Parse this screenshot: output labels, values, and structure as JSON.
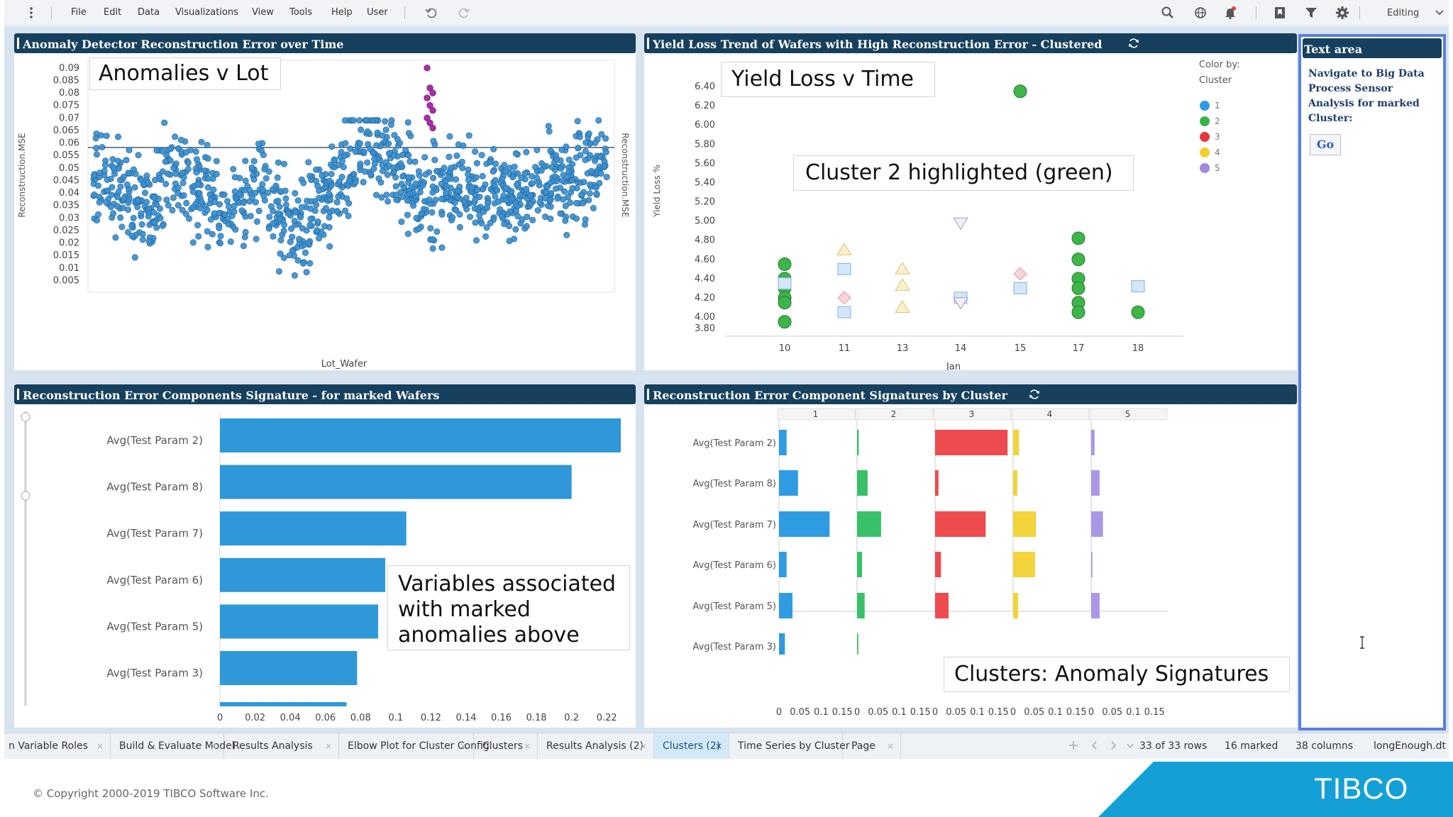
{
  "menubar": {
    "items": [
      "File",
      "Edit",
      "Data",
      "Visualizations",
      "View",
      "Tools",
      "Help",
      "User"
    ],
    "mode": "Editing"
  },
  "panels": {
    "anomaly": {
      "title": "Anomaly Detector Reconstruction Error over Time",
      "callout": "Anomalies v Lot",
      "xlabel": "Lot_Wafer",
      "ylabel": "Reconstruction.MSE",
      "ylabel_right": "Reconstruction.MSE",
      "yticks": [
        "0.09",
        "0.085",
        "0.08",
        "0.075",
        "0.07",
        "0.065",
        "0.06",
        "0.055",
        "0.05",
        "0.045",
        "0.04",
        "0.035",
        "0.03",
        "0.025",
        "0.02",
        "0.015",
        "0.01",
        "0.005"
      ]
    },
    "yield": {
      "title": "Yield Loss Trend of Wafers with High Reconstruction Error - Clustered",
      "callout1": "Yield Loss v Time",
      "callout2": "Cluster 2 highlighted (green)",
      "xlabel": "Jan",
      "ylabel": "Yield Loss %",
      "yticks": [
        "6.40",
        "6.20",
        "6.00",
        "5.80",
        "5.60",
        "5.40",
        "5.20",
        "5.00",
        "4.80",
        "4.60",
        "4.40",
        "4.20",
        "4.00",
        "3.80"
      ],
      "xticks": [
        "10",
        "11",
        "13",
        "14",
        "15",
        "17",
        "18"
      ],
      "legend_title": "Color by:",
      "legend_sub": "Cluster",
      "legend": [
        {
          "label": "1",
          "color": "#2f9be3"
        },
        {
          "label": "2",
          "color": "#38b34a"
        },
        {
          "label": "3",
          "color": "#e03a3e"
        },
        {
          "label": "4",
          "color": "#f1cf2c"
        },
        {
          "label": "5",
          "color": "#a18ae0"
        }
      ]
    },
    "signature": {
      "title": "Reconstruction Error Components Signature - for marked Wafers",
      "callout": "Variables associated with marked anomalies above",
      "categories": [
        "Avg(Test Param 2)",
        "Avg(Test Param 8)",
        "Avg(Test Param 7)",
        "Avg(Test Param 6)",
        "Avg(Test Param 5)",
        "Avg(Test Param 3)"
      ],
      "values": [
        0.228,
        0.2,
        0.106,
        0.094,
        0.09,
        0.078
      ],
      "xticks": [
        "0",
        "0.02",
        "0.04",
        "0.06",
        "0.08",
        "0.1",
        "0.12",
        "0.14",
        "0.16",
        "0.18",
        "0.2",
        "0.22"
      ]
    },
    "cluster": {
      "title": "Reconstruction Error Component Signatures by Cluster",
      "callout": "Clusters: Anomaly Signatures",
      "columns": [
        "1",
        "2",
        "3",
        "4",
        "5"
      ],
      "categories": [
        "Avg(Test Param 2)",
        "Avg(Test Param 8)",
        "Avg(Test Param 7)",
        "Avg(Test Param 6)",
        "Avg(Test Param 5)",
        "Avg(Test Param 3)"
      ],
      "xticks": [
        "0",
        "0.05",
        "0.1",
        "0.15"
      ]
    }
  },
  "chart_data": [
    {
      "type": "scatter",
      "title": "Anomaly Detector Reconstruction Error over Time",
      "xlabel": "Lot_Wafer",
      "ylabel": "Reconstruction.MSE",
      "ylim": [
        0.005,
        0.09
      ],
      "reference_line": 0.065,
      "series": [
        {
          "name": "wafers",
          "color": "#2f8fd0",
          "summary": "approx. 1000+ points between 0.005 and 0.07"
        },
        {
          "name": "marked",
          "color": "#a62fa6",
          "values": [
            0.09,
            0.082,
            0.08,
            0.078,
            0.075,
            0.073,
            0.07,
            0.068,
            0.066
          ]
        }
      ]
    },
    {
      "type": "scatter",
      "title": "Yield Loss Trend of Wafers with High Reconstruction Error - Clustered",
      "xlabel": "Jan",
      "ylabel": "Yield Loss %",
      "ylim": [
        3.8,
        6.4
      ],
      "x": [
        "10",
        "11",
        "13",
        "14",
        "15",
        "17",
        "18"
      ],
      "series": [
        {
          "name": "2",
          "points": [
            [
              10,
              4.55
            ],
            [
              10,
              4.4
            ],
            [
              10,
              4.3
            ],
            [
              10,
              4.2
            ],
            [
              10,
              4.15
            ],
            [
              10,
              3.95
            ],
            [
              15,
              6.35
            ],
            [
              17,
              4.82
            ],
            [
              17,
              4.6
            ],
            [
              17,
              4.4
            ],
            [
              17,
              4.3
            ],
            [
              17,
              4.15
            ],
            [
              17,
              4.05
            ],
            [
              18,
              4.05
            ]
          ]
        },
        {
          "name": "1",
          "points": [
            [
              10,
              4.35
            ],
            [
              11,
              4.5
            ],
            [
              11,
              4.05
            ],
            [
              14,
              4.2
            ],
            [
              15,
              4.3
            ],
            [
              18,
              4.32
            ]
          ]
        },
        {
          "name": "3",
          "points": [
            [
              11,
              4.2
            ],
            [
              15,
              4.45
            ]
          ]
        },
        {
          "name": "4",
          "points": [
            [
              11,
              4.7
            ],
            [
              13,
              4.5
            ],
            [
              13,
              4.33
            ],
            [
              13,
              4.1
            ]
          ]
        },
        {
          "name": "5",
          "points": [
            [
              14,
              4.98
            ],
            [
              14,
              4.15
            ]
          ]
        }
      ]
    },
    {
      "type": "bar",
      "title": "Reconstruction Error Components Signature - for marked Wafers",
      "categories": [
        "Avg(Test Param 2)",
        "Avg(Test Param 8)",
        "Avg(Test Param 7)",
        "Avg(Test Param 6)",
        "Avg(Test Param 5)",
        "Avg(Test Param 3)"
      ],
      "values": [
        0.228,
        0.2,
        0.106,
        0.094,
        0.09,
        0.078
      ],
      "xlim": [
        0,
        0.23
      ]
    },
    {
      "type": "bar",
      "title": "Reconstruction Error Component Signatures by Cluster",
      "categories": [
        "Avg(Test Param 2)",
        "Avg(Test Param 8)",
        "Avg(Test Param 7)",
        "Avg(Test Param 6)",
        "Avg(Test Param 5)",
        "Avg(Test Param 3)"
      ],
      "xlim": [
        0,
        0.18
      ],
      "series": [
        {
          "name": "1",
          "color": "#2f9be3",
          "values": [
            0.018,
            0.045,
            0.12,
            0.018,
            0.032,
            0.014
          ]
        },
        {
          "name": "2",
          "color": "#38c169",
          "values": [
            0.004,
            0.025,
            0.057,
            0.012,
            0.018,
            0.003
          ]
        },
        {
          "name": "3",
          "color": "#ee4b4f",
          "values": [
            0.172,
            0.008,
            0.12,
            0.014,
            0.032,
            0.008
          ]
        },
        {
          "name": "4",
          "color": "#f2d33a",
          "values": [
            0.014,
            0.01,
            0.054,
            0.052,
            0.012,
            0.034
          ]
        },
        {
          "name": "5",
          "color": "#aa97e6",
          "values": [
            0.008,
            0.02,
            0.028,
            0.003,
            0.02,
            0.002
          ]
        }
      ]
    }
  ],
  "text_area": {
    "title": "Text area",
    "body": "Navigate to Big Data Process Sensor Analysis for marked Cluster:",
    "button": "Go"
  },
  "tabs": [
    {
      "label": "n Variable Roles",
      "active": false
    },
    {
      "label": "Build & Evaluate Model",
      "active": false
    },
    {
      "label": "Results Analysis",
      "active": false
    },
    {
      "label": "Elbow Plot for Cluster Config",
      "active": false
    },
    {
      "label": "Clusters",
      "active": false
    },
    {
      "label": "Results Analysis (2)",
      "active": false
    },
    {
      "label": "Clusters (2)",
      "active": true
    },
    {
      "label": "Time Series by Cluster",
      "active": false
    },
    {
      "label": "Page",
      "active": false
    }
  ],
  "status": {
    "rows": "33 of 33 rows",
    "marked": "16 marked",
    "columns": "38 columns",
    "file": "longEnough.dt"
  },
  "footer": {
    "copyright": "© Copyright 2000-2019 TIBCO Software Inc.",
    "logo": "TIBCO"
  }
}
